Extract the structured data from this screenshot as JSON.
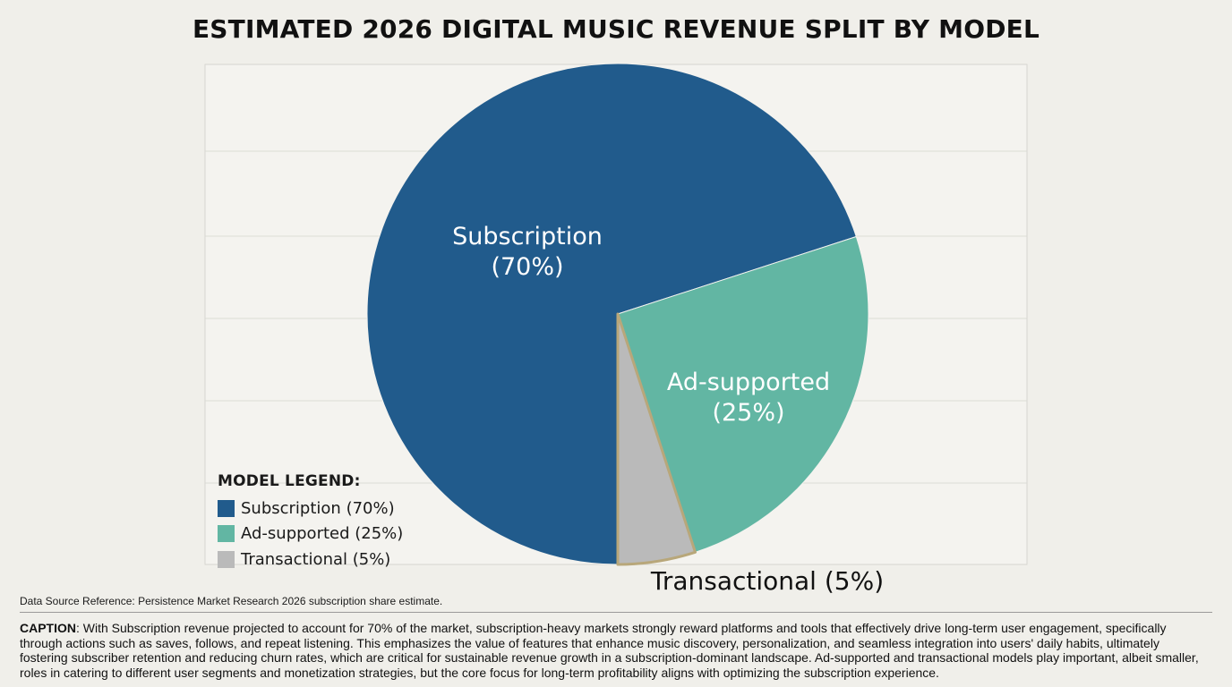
{
  "chart_data": {
    "type": "pie",
    "title": "ESTIMATED 2026 DIGITAL MUSIC REVENUE SPLIT BY MODEL",
    "slices": [
      {
        "name": "Subscription",
        "value": 70,
        "label_line1": "Subscription",
        "label_line2": "(70%)",
        "legend": "Subscription (70%)",
        "color": "#215b8c",
        "label_color": "#ffffff"
      },
      {
        "name": "Ad-supported",
        "value": 25,
        "label_line1": "Ad-supported",
        "label_line2": "(25%)",
        "legend": "Ad-supported (25%)",
        "color": "#62b6a3",
        "label_color": "#ffffff"
      },
      {
        "name": "Transactional",
        "value": 5,
        "label_line1": "Transactional (5%)",
        "label_line2": "",
        "legend": "Transactional (5%)",
        "color": "#bababa",
        "label_color": "#111111",
        "edge_color": "#b8a77a"
      }
    ],
    "legend_title": "MODEL LEGEND:",
    "legend_placement": "bottom-left",
    "grid": true
  },
  "footer": {
    "source": "Data Source Reference: Persistence Market Research 2026 subscription share estimate.",
    "caption_label": "CAPTION",
    "caption_text": ": With Subscription revenue projected to account for 70% of the market, subscription-heavy markets strongly reward platforms and tools that effectively drive long-term user engagement, specifically through actions such as saves, follows, and repeat listening. This emphasizes the value of features that enhance music discovery, personalization, and seamless integration into users' daily habits, ultimately fostering subscriber retention and reducing churn rates, which are critical for sustainable revenue growth in a subscription-dominant landscape. Ad-supported and transactional models play important, albeit smaller, roles in catering to different user segments and monetization strategies, but the core focus for long-term profitability aligns with optimizing the subscription experience."
  }
}
